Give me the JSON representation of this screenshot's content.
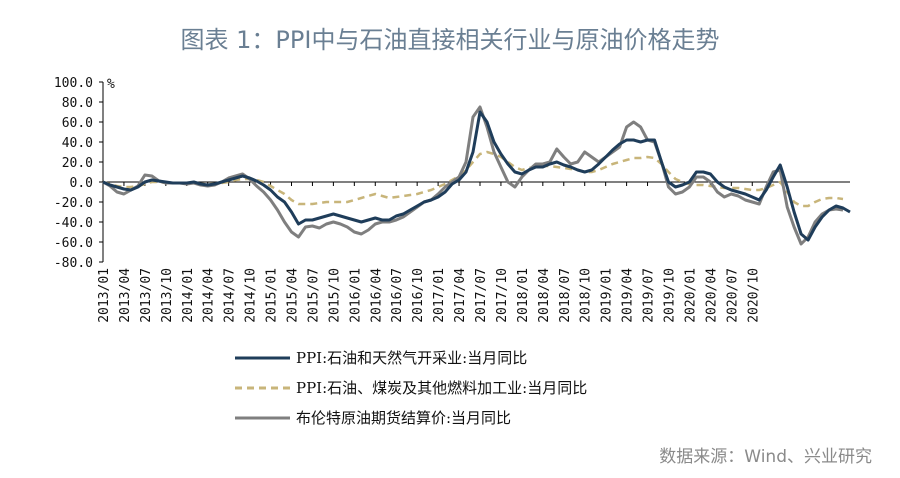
{
  "title": "图表 1：PPI中与石油直接相关行业与原油价格走势",
  "source": "数据来源：Wind、兴业研究",
  "colors": {
    "s1": "#1f3d5a",
    "s2": "#c8b57a",
    "s3": "#7f7f7f"
  },
  "chart_data": {
    "type": "line",
    "unit": "%",
    "ylim": [
      -80,
      100
    ],
    "yticks": [
      "100.0",
      "80.0",
      "60.0",
      "40.0",
      "20.0",
      "0.0",
      "-20.0",
      "-40.0",
      "-60.0",
      "-80.0"
    ],
    "xticks": [
      "2013/01",
      "2013/04",
      "2013/07",
      "2013/10",
      "2014/01",
      "2014/04",
      "2014/07",
      "2014/10",
      "2015/01",
      "2015/04",
      "2015/07",
      "2015/10",
      "2016/01",
      "2016/04",
      "2016/07",
      "2016/10",
      "2017/01",
      "2017/04",
      "2017/07",
      "2017/10",
      "2018/01",
      "2018/04",
      "2018/07",
      "2018/10",
      "2019/01",
      "2019/04",
      "2019/07",
      "2019/10",
      "2020/01",
      "2020/04",
      "2020/07",
      "2020/10"
    ],
    "x_start": "2013/01",
    "x_end": "2020/10",
    "grid": false,
    "legend_position": "bottom",
    "series": [
      {
        "name": "PPI:石油和天然气开采业:当月同比",
        "style": "solid",
        "values": [
          0,
          -3,
          -5,
          -7,
          -8,
          -5,
          0,
          2,
          1,
          0,
          -1,
          -1,
          -1,
          0,
          -2,
          -3,
          -2,
          0,
          2,
          4,
          6,
          4,
          1,
          -3,
          -8,
          -15,
          -20,
          -30,
          -42,
          -38,
          -38,
          -36,
          -34,
          -32,
          -34,
          -36,
          -38,
          -40,
          -38,
          -36,
          -38,
          -38,
          -34,
          -32,
          -28,
          -24,
          -20,
          -18,
          -15,
          -10,
          -2,
          2,
          10,
          30,
          70,
          60,
          40,
          28,
          18,
          10,
          8,
          12,
          15,
          15,
          18,
          20,
          17,
          15,
          12,
          10,
          12,
          18,
          25,
          32,
          38,
          42,
          42,
          40,
          42,
          42,
          20,
          0,
          -5,
          -3,
          0,
          10,
          10,
          8,
          0,
          -5,
          -8,
          -10,
          -12,
          -15,
          -18,
          -8,
          5,
          17,
          -5,
          -30,
          -52,
          -58,
          -45,
          -35,
          -28,
          -24,
          -26,
          -30
        ]
      },
      {
        "name": "PPI:石油、煤炭及其他燃料加工业:当月同比",
        "style": "dashed",
        "values": [
          0,
          -2,
          -4,
          -5,
          -5,
          -4,
          -2,
          0,
          0,
          -1,
          -1,
          -1,
          -1,
          -1,
          -2,
          -2,
          -2,
          -1,
          0,
          2,
          3,
          3,
          2,
          0,
          -4,
          -8,
          -12,
          -18,
          -22,
          -22,
          -22,
          -21,
          -20,
          -20,
          -20,
          -20,
          -18,
          -16,
          -14,
          -12,
          -14,
          -16,
          -15,
          -14,
          -13,
          -12,
          -10,
          -8,
          -5,
          -2,
          2,
          6,
          12,
          20,
          28,
          30,
          28,
          25,
          20,
          15,
          12,
          14,
          15,
          16,
          16,
          15,
          14,
          13,
          12,
          10,
          10,
          12,
          15,
          18,
          20,
          22,
          24,
          24,
          25,
          24,
          18,
          10,
          3,
          0,
          -2,
          -3,
          -3,
          -4,
          -5,
          -6,
          -6,
          -6,
          -7,
          -8,
          -8,
          -6,
          -3,
          0,
          -10,
          -20,
          -24,
          -24,
          -20,
          -17,
          -16,
          -16,
          -17
        ]
      },
      {
        "name": "布伦特原油期货结算价:当月同比",
        "style": "solid",
        "values": [
          0,
          -4,
          -10,
          -12,
          -8,
          -4,
          7,
          6,
          1,
          -1,
          -1,
          -1,
          -2,
          -1,
          -3,
          -4,
          -3,
          0,
          4,
          6,
          8,
          3,
          -4,
          -10,
          -18,
          -28,
          -40,
          -50,
          -55,
          -45,
          -44,
          -46,
          -42,
          -40,
          -42,
          -45,
          -50,
          -52,
          -48,
          -42,
          -40,
          -40,
          -38,
          -35,
          -30,
          -25,
          -20,
          -18,
          -12,
          -5,
          0,
          5,
          20,
          65,
          75,
          55,
          30,
          15,
          0,
          -5,
          5,
          12,
          18,
          18,
          20,
          33,
          25,
          18,
          20,
          30,
          25,
          20,
          25,
          30,
          35,
          55,
          60,
          55,
          42,
          40,
          20,
          -5,
          -12,
          -10,
          -5,
          5,
          5,
          0,
          -10,
          -15,
          -12,
          -14,
          -18,
          -20,
          -22,
          -5,
          10,
          12,
          -25,
          -45,
          -62,
          -55,
          -40,
          -32,
          -28,
          -27,
          -28
        ]
      }
    ]
  }
}
